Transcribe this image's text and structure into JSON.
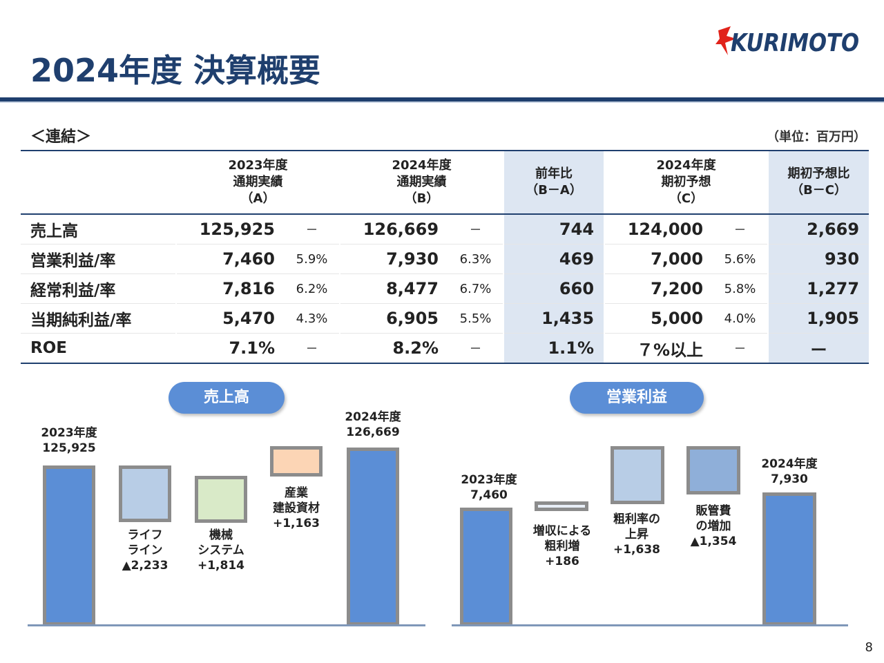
{
  "header": {
    "title": "2024年度 決算概要",
    "logo_text": "KURIMOTO"
  },
  "section_label": "＜連結＞",
  "unit_label": "（単位：百万円）",
  "table": {
    "columns": [
      {
        "l1": "2023年度",
        "l2": "通期実績",
        "l3": "（A）"
      },
      {
        "l1": "2024年度",
        "l2": "通期実績",
        "l3": "（B）"
      },
      {
        "l1": "前年比",
        "l2": "（B－A）",
        "l3": ""
      },
      {
        "l1": "2024年度",
        "l2": "期初予想",
        "l3": "（C）"
      },
      {
        "l1": "期初予想比",
        "l2": "（B－C）",
        "l3": ""
      }
    ],
    "rows": [
      {
        "label": "売上高",
        "a": "125,925",
        "a_pct": "－",
        "b": "126,669",
        "b_pct": "－",
        "yoy": "744",
        "c": "124,000",
        "c_pct": "－",
        "vs": "2,669"
      },
      {
        "label": "営業利益/率",
        "a": "7,460",
        "a_pct": "5.9%",
        "b": "7,930",
        "b_pct": "6.3%",
        "yoy": "469",
        "c": "7,000",
        "c_pct": "5.6%",
        "vs": "930"
      },
      {
        "label": "経常利益/率",
        "a": "7,816",
        "a_pct": "6.2%",
        "b": "8,477",
        "b_pct": "6.7%",
        "yoy": "660",
        "c": "7,200",
        "c_pct": "5.8%",
        "vs": "1,277"
      },
      {
        "label": "当期純利益/率",
        "a": "5,470",
        "a_pct": "4.3%",
        "b": "6,905",
        "b_pct": "5.5%",
        "yoy": "1,435",
        "c": "5,000",
        "c_pct": "4.0%",
        "vs": "1,905"
      },
      {
        "label": "ROE",
        "a": "7.1%",
        "a_pct": "－",
        "b": "8.2%",
        "b_pct": "－",
        "yoy": "1.1%",
        "c": "７%以上",
        "c_pct": "－",
        "vs": "ー"
      }
    ]
  },
  "sales_chart": {
    "title": "売上高",
    "start_label": "2023年度",
    "start_value": "125,925",
    "steps": [
      {
        "l1": "ライフ",
        "l2": "ライン",
        "l3": "▲2,233"
      },
      {
        "l1": "機械",
        "l2": "システム",
        "l3": "+1,814"
      },
      {
        "l1": "産業",
        "l2": "建設資材",
        "l3": "+1,163"
      }
    ],
    "end_label": "2024年度",
    "end_value": "126,669",
    "colors": {
      "total": "#5b8ed6",
      "step1": "#b8cde6",
      "step2": "#d9eac8",
      "step3": "#fcd5b5"
    }
  },
  "op_chart": {
    "title": "営業利益",
    "start_label": "2023年度",
    "start_value": "7,460",
    "steps": [
      {
        "l1": "増収による",
        "l2": "粗利増",
        "l3": "+186"
      },
      {
        "l1": "粗利率の",
        "l2": "上昇",
        "l3": "+1,638"
      },
      {
        "l1": "販管費",
        "l2": "の増加",
        "l3": "▲1,354"
      }
    ],
    "end_label": "2024年度",
    "end_value": "7,930",
    "colors": {
      "total": "#5b8ed6",
      "step1": "#e8eef7",
      "step2": "#b8cde6",
      "step3": "#8fafd9"
    }
  },
  "page_number": "8"
}
